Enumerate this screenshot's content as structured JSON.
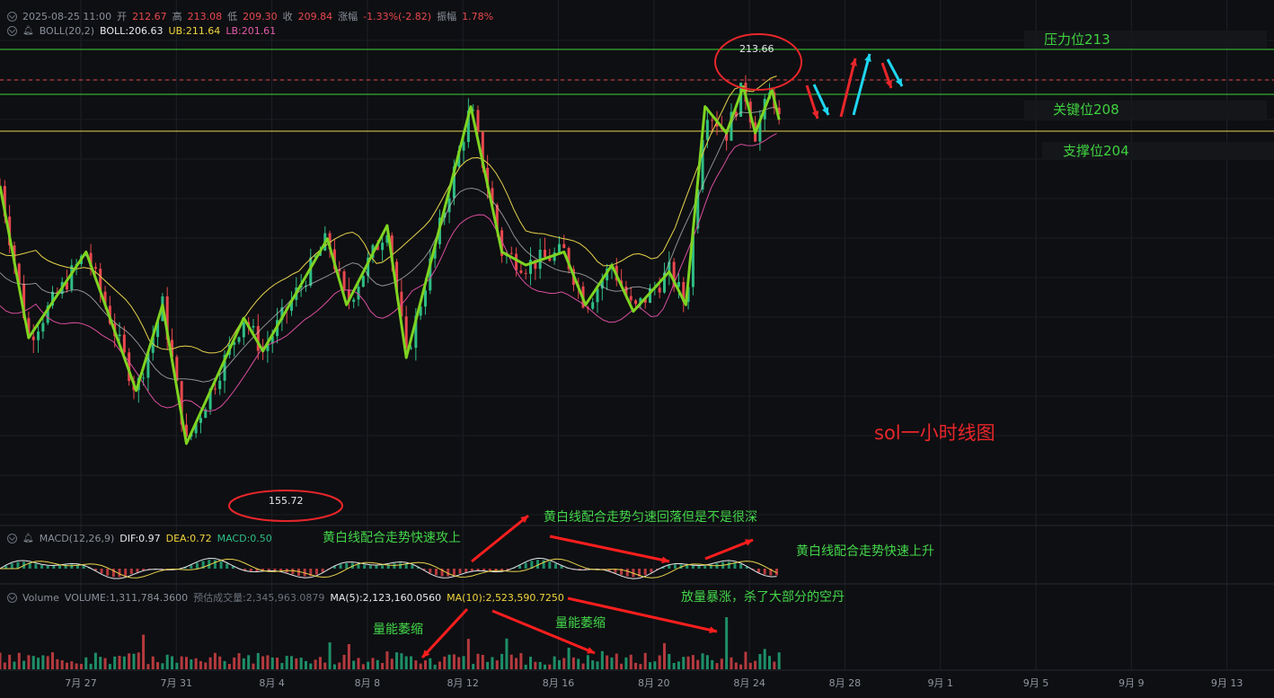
{
  "header": {
    "date": "2025-08-25 11:00",
    "open_label": "开",
    "open": "212.67",
    "high_label": "高",
    "high": "213.08",
    "low_label": "低",
    "low": "209.30",
    "close_label": "收",
    "close": "209.84",
    "change_label": "涨幅",
    "change": "-1.33%(-2.82)",
    "amp_label": "振幅",
    "amp": "1.78%"
  },
  "boll": {
    "label": "BOLL(20,2)",
    "boll": "BOLL:206.63",
    "ub": "UB:211.64",
    "lb": "LB:201.61"
  },
  "macd": {
    "label": "MACD(12,26,9)",
    "dif": "DIF:0.97",
    "dea": "DEA:0.72",
    "macd": "MACD:0.50"
  },
  "volume": {
    "label": "Volume",
    "vol": "VOLUME:1,311,784.3600",
    "est": "预估成交量:2,345,963.0879",
    "ma5": "MA(5):2,123,160.0560",
    "ma10": "MA(10):2,523,590.7250"
  },
  "levels": {
    "resistance": "压力位213",
    "key": "关键位208",
    "support": "支撑位204"
  },
  "chart_title": "sol一小时线图",
  "price_marks": {
    "high": "213.66",
    "low": "155.72"
  },
  "notes": {
    "n1": "黄白线配合走势快速攻上",
    "n2": "黄白线配合走势匀速回落但是不是很深",
    "n3": "黄白线配合走势快速上升",
    "n4": "放量暴涨，杀了大部分的空丹",
    "n5": "量能萎缩",
    "n6": "量能萎缩"
  },
  "chart_data": {
    "type": "line",
    "x_ticks": [
      "7月 27",
      "7月 31",
      "8月 4",
      "8月 8",
      "8月 12",
      "8月 16",
      "8月 20",
      "8月 24",
      "8月 28",
      "9月 1",
      "9月 5",
      "9月 9",
      "9月 13"
    ],
    "ylim": [
      150,
      220
    ],
    "series": [
      {
        "values": [
          [
            0,
            198
          ],
          [
            1.2,
            175
          ],
          [
            3.6,
            188
          ],
          [
            5.7,
            167
          ],
          [
            6.8,
            180
          ],
          [
            7.8,
            159
          ],
          [
            10.2,
            178
          ],
          [
            11,
            173
          ],
          [
            13.7,
            190
          ],
          [
            14.5,
            180
          ],
          [
            16.2,
            192
          ],
          [
            17,
            172
          ],
          [
            19.7,
            210
          ],
          [
            21,
            188
          ],
          [
            22,
            186
          ],
          [
            23.6,
            188
          ],
          [
            24.5,
            180
          ],
          [
            25.6,
            186
          ],
          [
            26.5,
            179
          ],
          [
            28,
            185
          ],
          [
            28.7,
            180
          ],
          [
            29.5,
            210
          ],
          [
            30.4,
            206
          ],
          [
            31.1,
            213
          ],
          [
            31.6,
            206
          ],
          [
            32.3,
            212.5
          ],
          [
            32.6,
            208
          ]
        ]
      }
    ],
    "levels": [
      213,
      208,
      204
    ],
    "colors": {
      "up": "#2ebd85",
      "down": "#e8484e",
      "zigzag": "#7ed321",
      "ub": "#e8d44d",
      "lb": "#d94fa0",
      "mid": "#c8c8c8"
    }
  }
}
